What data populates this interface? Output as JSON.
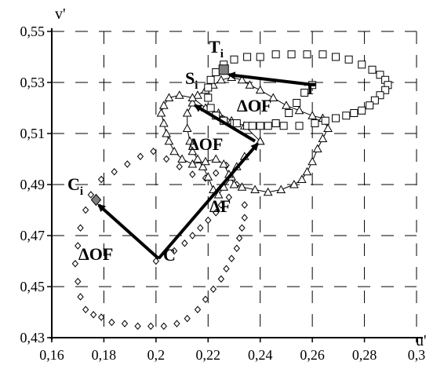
{
  "chart_data": {
    "type": "scatter",
    "title": "",
    "xlabel": "u'",
    "ylabel": "v'",
    "xlim": [
      0.16,
      0.3
    ],
    "ylim": [
      0.43,
      0.55
    ],
    "x_ticks": [
      "0,16",
      "0,18",
      "0,2",
      "0,22",
      "0,24",
      "0,26",
      "0,28",
      "0,3"
    ],
    "y_ticks": [
      "0,43",
      "0,45",
      "0,47",
      "0,49",
      "0,51",
      "0,53",
      "0,55"
    ],
    "x_tick_values": [
      0.16,
      0.18,
      0.2,
      0.22,
      0.24,
      0.26,
      0.28,
      0.3
    ],
    "y_tick_values": [
      0.43,
      0.45,
      0.47,
      0.49,
      0.51,
      0.53,
      0.55
    ],
    "grid": true,
    "series": [
      {
        "marker": "diamond",
        "connected": false,
        "points": [
          [
            0.2,
            0.46
          ],
          [
            0.207,
            0.464
          ],
          [
            0.211,
            0.467
          ],
          [
            0.214,
            0.47
          ],
          [
            0.217,
            0.473
          ],
          [
            0.22,
            0.476
          ],
          [
            0.223,
            0.479
          ],
          [
            0.225,
            0.482
          ],
          [
            0.228,
            0.485
          ],
          [
            0.231,
            0.49
          ],
          [
            0.227,
            0.4975
          ],
          [
            0.223,
            0.4945
          ],
          [
            0.219,
            0.4925
          ],
          [
            0.214,
            0.494
          ],
          [
            0.209,
            0.497
          ],
          [
            0.204,
            0.5
          ],
          [
            0.199,
            0.503
          ],
          [
            0.194,
            0.501
          ],
          [
            0.189,
            0.498
          ],
          [
            0.184,
            0.495
          ],
          [
            0.179,
            0.492
          ],
          [
            0.175,
            0.486
          ],
          [
            0.173,
            0.48
          ],
          [
            0.171,
            0.473
          ],
          [
            0.17,
            0.466
          ],
          [
            0.169,
            0.459
          ],
          [
            0.17,
            0.452
          ],
          [
            0.171,
            0.446
          ],
          [
            0.173,
            0.441
          ],
          [
            0.176,
            0.439
          ],
          [
            0.179,
            0.438
          ],
          [
            0.183,
            0.436
          ],
          [
            0.188,
            0.4355
          ],
          [
            0.193,
            0.4345
          ],
          [
            0.198,
            0.4345
          ],
          [
            0.203,
            0.4345
          ],
          [
            0.208,
            0.4355
          ],
          [
            0.212,
            0.4375
          ],
          [
            0.216,
            0.441
          ],
          [
            0.219,
            0.445
          ],
          [
            0.222,
            0.449
          ],
          [
            0.225,
            0.453
          ],
          [
            0.227,
            0.457
          ],
          [
            0.229,
            0.461
          ],
          [
            0.231,
            0.465
          ],
          [
            0.232,
            0.469
          ],
          [
            0.233,
            0.473
          ],
          [
            0.234,
            0.477
          ],
          [
            0.234,
            0.482
          ]
        ]
      },
      {
        "marker": "triangle",
        "connected": true,
        "points": [
          [
            0.24,
            0.507
          ],
          [
            0.234,
            0.501
          ],
          [
            0.231,
            0.497
          ],
          [
            0.229,
            0.493
          ],
          [
            0.226,
            0.489
          ],
          [
            0.224,
            0.486
          ],
          [
            0.222,
            0.488
          ],
          [
            0.22,
            0.493
          ],
          [
            0.218,
            0.497
          ],
          [
            0.216,
            0.5
          ],
          [
            0.214,
            0.503
          ],
          [
            0.213,
            0.507
          ],
          [
            0.212,
            0.512
          ],
          [
            0.212,
            0.518
          ],
          [
            0.214,
            0.522
          ],
          [
            0.216,
            0.525
          ],
          [
            0.219,
            0.527
          ],
          [
            0.222,
            0.529
          ],
          [
            0.225,
            0.531
          ],
          [
            0.229,
            0.532
          ],
          [
            0.233,
            0.531
          ],
          [
            0.236,
            0.529
          ],
          [
            0.24,
            0.527
          ],
          [
            0.245,
            0.524
          ],
          [
            0.25,
            0.521
          ],
          [
            0.255,
            0.519
          ],
          [
            0.26,
            0.517
          ],
          [
            0.264,
            0.516
          ],
          [
            0.266,
            0.512
          ],
          [
            0.264,
            0.508
          ],
          [
            0.262,
            0.504
          ],
          [
            0.26,
            0.499
          ],
          [
            0.258,
            0.495
          ],
          [
            0.256,
            0.492
          ],
          [
            0.253,
            0.49
          ],
          [
            0.248,
            0.488
          ],
          [
            0.243,
            0.487
          ],
          [
            0.238,
            0.488
          ],
          [
            0.233,
            0.489
          ],
          [
            0.23,
            0.49
          ],
          [
            0.228,
            0.494
          ],
          [
            0.226,
            0.498
          ],
          [
            0.223,
            0.5
          ],
          [
            0.219,
            0.499
          ],
          [
            0.214,
            0.498
          ],
          [
            0.21,
            0.5
          ],
          [
            0.207,
            0.503
          ],
          [
            0.205,
            0.507
          ],
          [
            0.204,
            0.51
          ],
          [
            0.203,
            0.514
          ],
          [
            0.202,
            0.518
          ],
          [
            0.203,
            0.521
          ],
          [
            0.205,
            0.524
          ],
          [
            0.209,
            0.525
          ],
          [
            0.214,
            0.524
          ],
          [
            0.219,
            0.52
          ],
          [
            0.224,
            0.518
          ],
          [
            0.229,
            0.515
          ],
          [
            0.234,
            0.513
          ],
          [
            0.24,
            0.507
          ]
        ]
      },
      {
        "marker": "square",
        "connected": false,
        "points": [
          [
            0.26,
            0.529
          ],
          [
            0.257,
            0.526
          ],
          [
            0.254,
            0.522
          ],
          [
            0.251,
            0.518
          ],
          [
            0.246,
            0.514
          ],
          [
            0.24,
            0.513
          ],
          [
            0.235,
            0.513
          ],
          [
            0.23,
            0.514
          ],
          [
            0.226,
            0.515
          ],
          [
            0.223,
            0.517
          ],
          [
            0.221,
            0.52
          ],
          [
            0.22,
            0.524
          ],
          [
            0.22,
            0.528
          ],
          [
            0.221,
            0.531
          ],
          [
            0.223,
            0.534
          ],
          [
            0.226,
            0.537
          ],
          [
            0.23,
            0.539
          ],
          [
            0.235,
            0.54
          ],
          [
            0.24,
            0.54
          ],
          [
            0.246,
            0.541
          ],
          [
            0.252,
            0.541
          ],
          [
            0.258,
            0.541
          ],
          [
            0.264,
            0.541
          ],
          [
            0.269,
            0.54
          ],
          [
            0.274,
            0.539
          ],
          [
            0.279,
            0.537
          ],
          [
            0.283,
            0.535
          ],
          [
            0.286,
            0.533
          ],
          [
            0.288,
            0.531
          ],
          [
            0.289,
            0.529
          ],
          [
            0.288,
            0.527
          ],
          [
            0.286,
            0.525
          ],
          [
            0.284,
            0.523
          ],
          [
            0.282,
            0.521
          ],
          [
            0.279,
            0.519
          ],
          [
            0.276,
            0.518
          ],
          [
            0.273,
            0.517
          ],
          [
            0.269,
            0.516
          ],
          [
            0.265,
            0.515
          ],
          [
            0.261,
            0.514
          ],
          [
            0.255,
            0.513
          ],
          [
            0.249,
            0.513
          ],
          [
            0.243,
            0.513
          ],
          [
            0.237,
            0.513
          ],
          [
            0.231,
            0.514
          ],
          [
            0.226,
            0.515
          ]
        ]
      }
    ],
    "highlighted_points": [
      {
        "label": "T",
        "sub": "i",
        "u": 0.226,
        "v": 0.535
      },
      {
        "label": "C",
        "sub": "i",
        "u": 0.177,
        "v": 0.484
      }
    ],
    "arrows": [
      {
        "label": "ΔOF",
        "from": [
          0.201,
          0.461
        ],
        "to": [
          0.178,
          0.482
        ]
      },
      {
        "label": "ΔF",
        "from": [
          0.201,
          0.461
        ],
        "to": [
          0.239,
          0.506
        ]
      },
      {
        "label": "ΔOF",
        "from": [
          0.238,
          0.507
        ],
        "to": [
          0.215,
          0.521
        ]
      },
      {
        "label": "ΔOF",
        "from": [
          0.261,
          0.529
        ],
        "to": [
          0.228,
          0.533
        ]
      }
    ],
    "point_labels": [
      {
        "text": "C",
        "sub": ""
      },
      {
        "text": "T",
        "sub": ""
      },
      {
        "text": "S",
        "sub": "i"
      },
      {
        "text": "T",
        "sub": "i"
      },
      {
        "text": "C",
        "sub": "i"
      }
    ]
  }
}
